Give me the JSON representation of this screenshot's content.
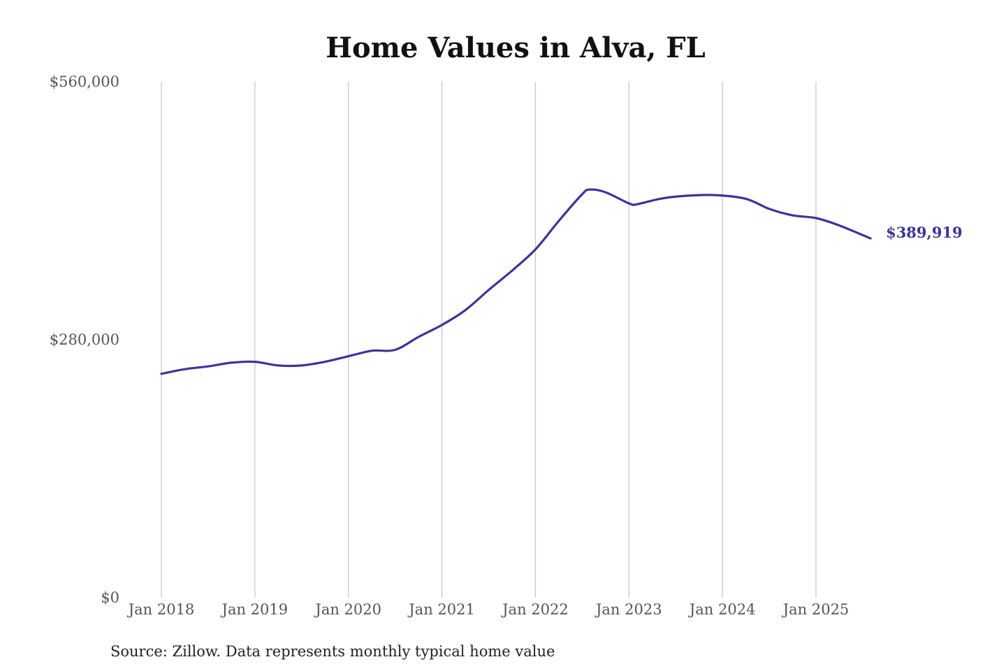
{
  "chart_data": {
    "type": "line",
    "title": "Home Values in Alva, FL",
    "source": "Source: Zillow. Data represents monthly typical home value",
    "xlabel": "",
    "ylabel": "",
    "ylim": [
      0,
      560000
    ],
    "y_ticks": [
      {
        "value": 0,
        "label": "$0"
      },
      {
        "value": 280000,
        "label": "$280,000"
      },
      {
        "value": 560000,
        "label": "$560,000"
      }
    ],
    "x_range": [
      "2018-01",
      "2025-08"
    ],
    "x_ticks": [
      {
        "date": "2018-01",
        "label": "Jan 2018"
      },
      {
        "date": "2019-01",
        "label": "Jan 2019"
      },
      {
        "date": "2020-01",
        "label": "Jan 2020"
      },
      {
        "date": "2021-01",
        "label": "Jan 2021"
      },
      {
        "date": "2022-01",
        "label": "Jan 2022"
      },
      {
        "date": "2023-01",
        "label": "Jan 2023"
      },
      {
        "date": "2024-01",
        "label": "Jan 2024"
      },
      {
        "date": "2025-01",
        "label": "Jan 2025"
      }
    ],
    "grid": {
      "vertical": true,
      "horizontal": false
    },
    "line_color": "#3b3599",
    "end_label": "$389,919",
    "series": [
      {
        "points": [
          {
            "date": "2018-01",
            "value": 243000
          },
          {
            "date": "2018-04",
            "value": 248000
          },
          {
            "date": "2018-07",
            "value": 251000
          },
          {
            "date": "2018-10",
            "value": 255000
          },
          {
            "date": "2019-01",
            "value": 256000
          },
          {
            "date": "2019-04",
            "value": 252000
          },
          {
            "date": "2019-07",
            "value": 252000
          },
          {
            "date": "2019-10",
            "value": 256000
          },
          {
            "date": "2020-01",
            "value": 262000
          },
          {
            "date": "2020-04",
            "value": 268000
          },
          {
            "date": "2020-07",
            "value": 269000
          },
          {
            "date": "2020-10",
            "value": 283000
          },
          {
            "date": "2021-01",
            "value": 296000
          },
          {
            "date": "2021-04",
            "value": 312000
          },
          {
            "date": "2021-07",
            "value": 334000
          },
          {
            "date": "2021-10",
            "value": 355000
          },
          {
            "date": "2022-01",
            "value": 378000
          },
          {
            "date": "2022-04",
            "value": 409000
          },
          {
            "date": "2022-07",
            "value": 438000
          },
          {
            "date": "2022-08",
            "value": 443000
          },
          {
            "date": "2022-10",
            "value": 440000
          },
          {
            "date": "2023-01",
            "value": 428000
          },
          {
            "date": "2023-02",
            "value": 427000
          },
          {
            "date": "2023-05",
            "value": 433000
          },
          {
            "date": "2023-08",
            "value": 436000
          },
          {
            "date": "2023-12",
            "value": 437000
          },
          {
            "date": "2024-04",
            "value": 433000
          },
          {
            "date": "2024-07",
            "value": 422000
          },
          {
            "date": "2024-10",
            "value": 415000
          },
          {
            "date": "2025-01",
            "value": 412000
          },
          {
            "date": "2025-04",
            "value": 404000
          },
          {
            "date": "2025-08",
            "value": 389919
          }
        ]
      }
    ]
  }
}
